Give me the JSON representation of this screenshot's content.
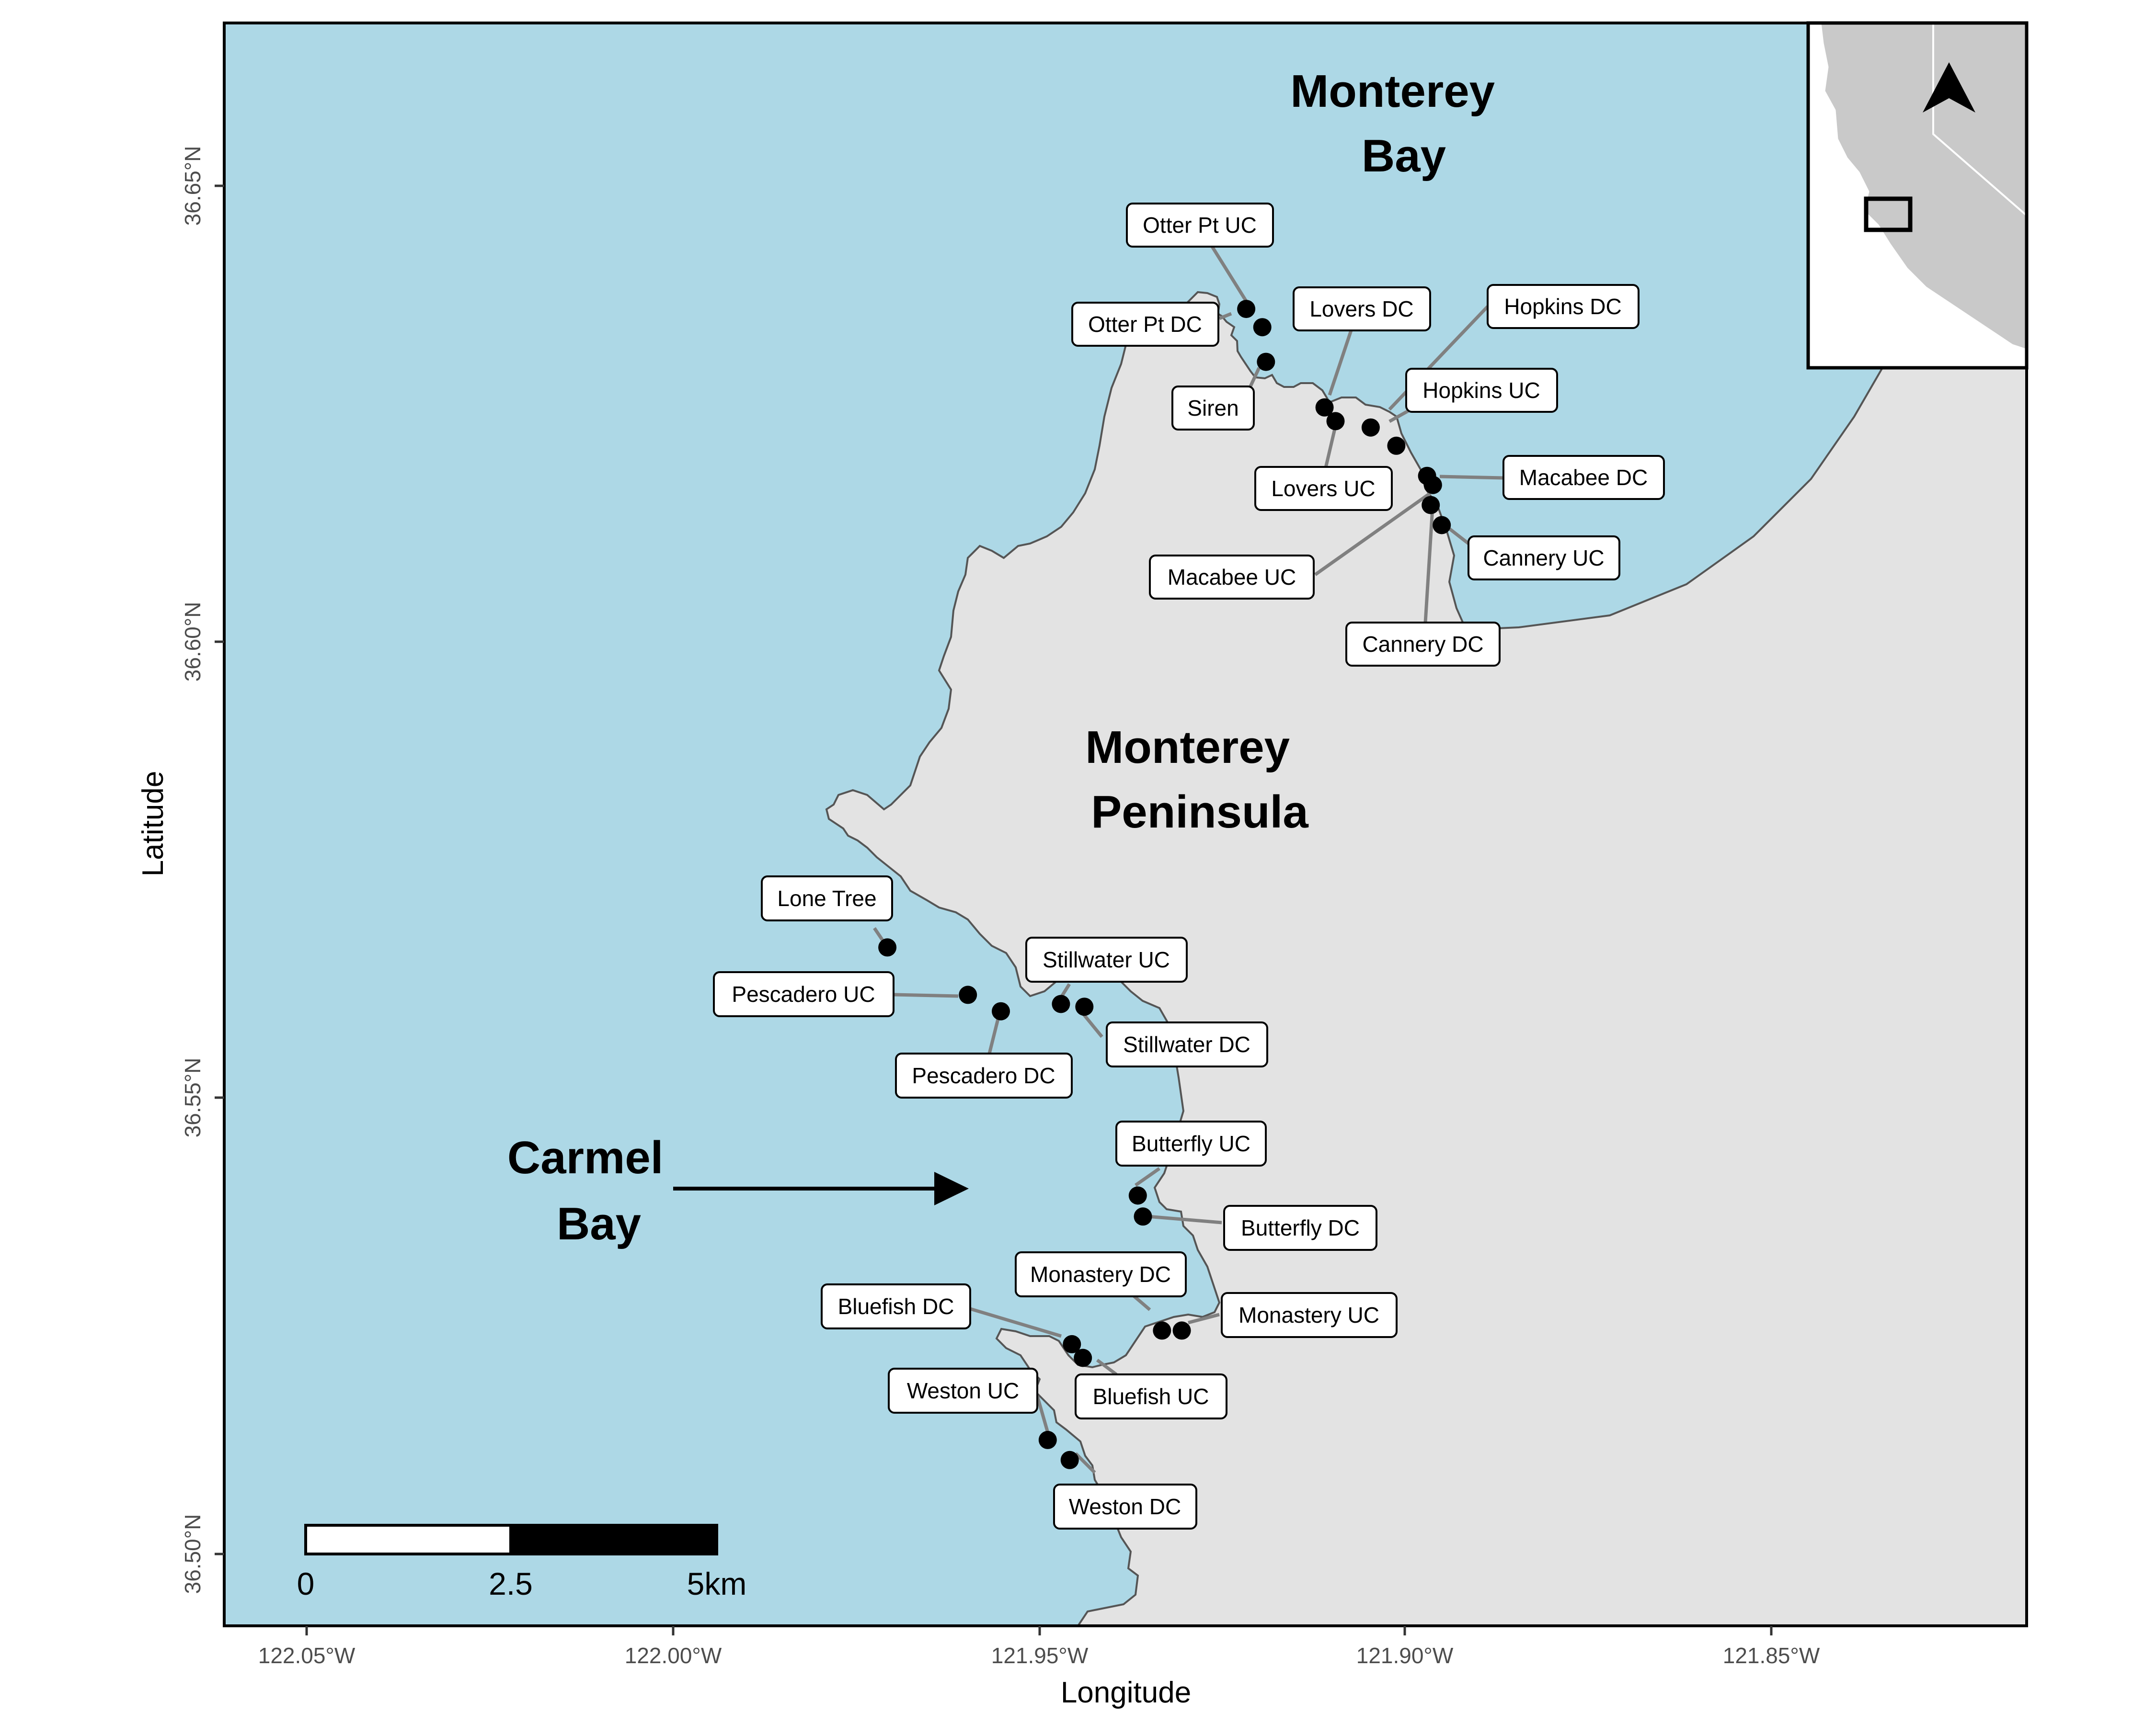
{
  "colors": {
    "water": "#add8e6",
    "land": "#e3e3e3",
    "coastline": "#555555",
    "inset_land": "#c9c9c9",
    "leader": "#808080"
  },
  "map": {
    "x_axis_title": "Longitude",
    "y_axis_title": "Latitude",
    "x_ticks": [
      "122.05°W",
      "122.00°W",
      "121.95°W",
      "121.90°W",
      "121.85°W"
    ],
    "y_ticks": [
      "36.50°N",
      "36.55°N",
      "36.60°N",
      "36.65°N"
    ],
    "extent": {
      "lon": [
        -122.061,
        -121.815
      ],
      "lat": [
        36.492,
        36.668
      ]
    }
  },
  "regions": {
    "monterey_bay": [
      "Monterey",
      "Bay"
    ],
    "monterey_peninsula": [
      "Monterey",
      "Peninsula"
    ],
    "carmel_bay": [
      "Carmel",
      "Bay"
    ]
  },
  "scale_bar": {
    "labels": [
      "0",
      "2.5",
      "5km"
    ]
  },
  "inset": {
    "north_arrow": "north-arrow-icon"
  },
  "sites": [
    {
      "name": "Otter Pt UC",
      "lon": -121.9217,
      "lat": 36.6365
    },
    {
      "name": "Otter Pt DC",
      "lon": -121.9195,
      "lat": 36.6345
    },
    {
      "name": "Siren",
      "lon": -121.919,
      "lat": 36.6307
    },
    {
      "name": "Lovers DC",
      "lon": -121.911,
      "lat": 36.6257
    },
    {
      "name": "Lovers UC",
      "lon": -121.9095,
      "lat": 36.6242
    },
    {
      "name": "Hopkins DC",
      "lon": -121.9047,
      "lat": 36.6235
    },
    {
      "name": "Hopkins UC",
      "lon": -121.9012,
      "lat": 36.6215
    },
    {
      "name": "Macabee DC",
      "lon": -121.897,
      "lat": 36.6182
    },
    {
      "name": "Macabee UC",
      "lon": -121.8962,
      "lat": 36.6172
    },
    {
      "name": "Cannery DC",
      "lon": -121.8965,
      "lat": 36.615
    },
    {
      "name": "Cannery UC",
      "lon": -121.895,
      "lat": 36.6128
    },
    {
      "name": "Lone Tree",
      "lon": -121.9707,
      "lat": 36.5665
    },
    {
      "name": "Pescadero UC",
      "lon": -121.9597,
      "lat": 36.5613
    },
    {
      "name": "Pescadero DC",
      "lon": -121.9552,
      "lat": 36.5595
    },
    {
      "name": "Stillwater UC",
      "lon": -121.947,
      "lat": 36.5603
    },
    {
      "name": "Stillwater DC",
      "lon": -121.9438,
      "lat": 36.56
    },
    {
      "name": "Butterfly UC",
      "lon": -121.9365,
      "lat": 36.5393
    },
    {
      "name": "Butterfly DC",
      "lon": -121.9358,
      "lat": 36.537
    },
    {
      "name": "Monastery DC",
      "lon": -121.9332,
      "lat": 36.5245
    },
    {
      "name": "Monastery UC",
      "lon": -121.9305,
      "lat": 36.5245
    },
    {
      "name": "Bluefish DC",
      "lon": -121.9455,
      "lat": 36.523
    },
    {
      "name": "Bluefish UC",
      "lon": -121.944,
      "lat": 36.5215
    },
    {
      "name": "Weston UC",
      "lon": -121.9488,
      "lat": 36.5125
    },
    {
      "name": "Weston DC",
      "lon": -121.9458,
      "lat": 36.5103
    }
  ]
}
